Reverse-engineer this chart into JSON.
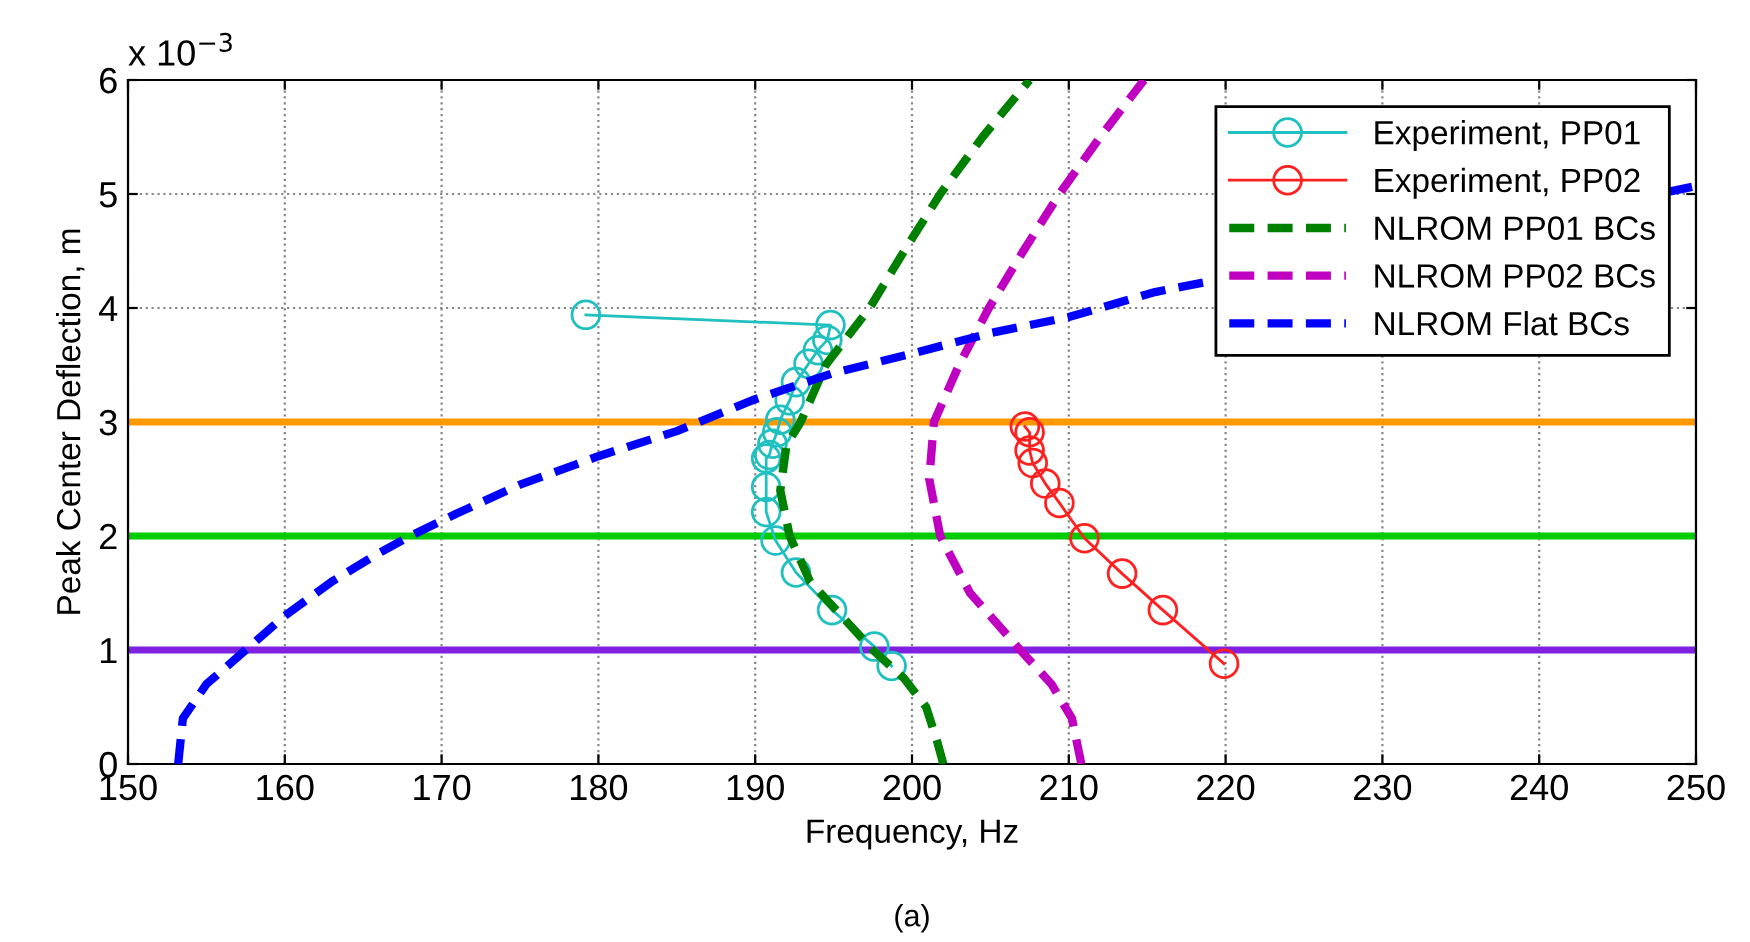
{
  "chart_data": {
    "type": "line",
    "xlabel": "Frequency, Hz",
    "ylabel": "Peak Center Deflection, m",
    "annotations": [
      "x 10$^{−3}$",
      "(a)"
    ],
    "xlim": [
      150,
      250
    ],
    "xticks": [
      150,
      160,
      170,
      180,
      190,
      200,
      210,
      220,
      230,
      240,
      250
    ],
    "ylim": [
      0,
      6
    ],
    "yticks": [
      0,
      1,
      2,
      3,
      4,
      5,
      6
    ],
    "grid": true,
    "legend": "top right",
    "ref_lines": [
      {
        "axis": "y",
        "value": 3,
        "color": "#ff9900"
      },
      {
        "axis": "y",
        "value": 2,
        "color": "#00cc00"
      },
      {
        "axis": "y",
        "value": 1,
        "color": "#8020e0"
      }
    ],
    "series": [
      {
        "name": "Experiment, PP01",
        "color": "#20c0c0",
        "marker": "circle",
        "line_style": "solid",
        "x": [
          179.2,
          194.8,
          194.6,
          194.0,
          193.4,
          192.6,
          192.2,
          191.6,
          191.4,
          191.1,
          190.9,
          190.7,
          190.7,
          190.7,
          191.3,
          192.6,
          194.9,
          197.6,
          198.7
        ],
        "values": [
          3.94,
          3.85,
          3.72,
          3.63,
          3.51,
          3.35,
          3.19,
          3.02,
          2.91,
          2.81,
          2.71,
          2.68,
          2.43,
          2.21,
          1.96,
          1.68,
          1.35,
          1.03,
          0.86
        ]
      },
      {
        "name": "Experiment, PP02",
        "color": "#ff2020",
        "marker": "circle",
        "line_style": "solid",
        "x": [
          207.2,
          207.5,
          207.5,
          207.7,
          208.5,
          209.4,
          211.0,
          213.4,
          216.0,
          219.9
        ],
        "values": [
          2.96,
          2.91,
          2.75,
          2.64,
          2.46,
          2.29,
          1.98,
          1.67,
          1.35,
          0.88
        ]
      },
      {
        "name": "NLROM PP01 BCs",
        "color": "#008000",
        "marker": "none",
        "line_style": "dashed",
        "x": [
          202.0,
          201.6,
          200.9,
          199.5,
          197.5,
          195.5,
          193.5,
          192.2,
          191.6,
          192.0,
          192.9,
          194.5,
          197.3,
          199.5,
          201.8,
          204.5,
          207.5
        ],
        "values": [
          0,
          0.2,
          0.5,
          0.75,
          1.0,
          1.3,
          1.6,
          2.0,
          2.4,
          2.8,
          3.0,
          3.5,
          4.0,
          4.5,
          5.0,
          5.5,
          6.0
        ]
      },
      {
        "name": "NLROM PP02 BCs",
        "color": "#c000c0",
        "marker": "none",
        "line_style": "dashed",
        "x": [
          210.8,
          210.2,
          208.9,
          206.9,
          203.7,
          201.8,
          201.1,
          201.4,
          203.0,
          204.9,
          207.1,
          209.4,
          212.0,
          214.8
        ],
        "values": [
          0,
          0.4,
          0.7,
          1.0,
          1.5,
          2.0,
          2.5,
          3.0,
          3.5,
          4.0,
          4.5,
          5.0,
          5.5,
          6.0
        ]
      },
      {
        "name": "NLROM Flat BCs",
        "color": "#0000ff",
        "marker": "none",
        "line_style": "dashed",
        "x": [
          153.2,
          153.5,
          155,
          157.5,
          160,
          163,
          166,
          168,
          171,
          175,
          180,
          185,
          190,
          195,
          200,
          205,
          210,
          215.5,
          248.6,
          250
        ],
        "values": [
          0,
          0.4,
          0.7,
          1.0,
          1.3,
          1.6,
          1.85,
          2.0,
          2.2,
          2.45,
          2.7,
          2.92,
          3.2,
          3.43,
          3.6,
          3.78,
          3.92,
          4.14,
          5.03,
          5.07
        ]
      }
    ]
  }
}
